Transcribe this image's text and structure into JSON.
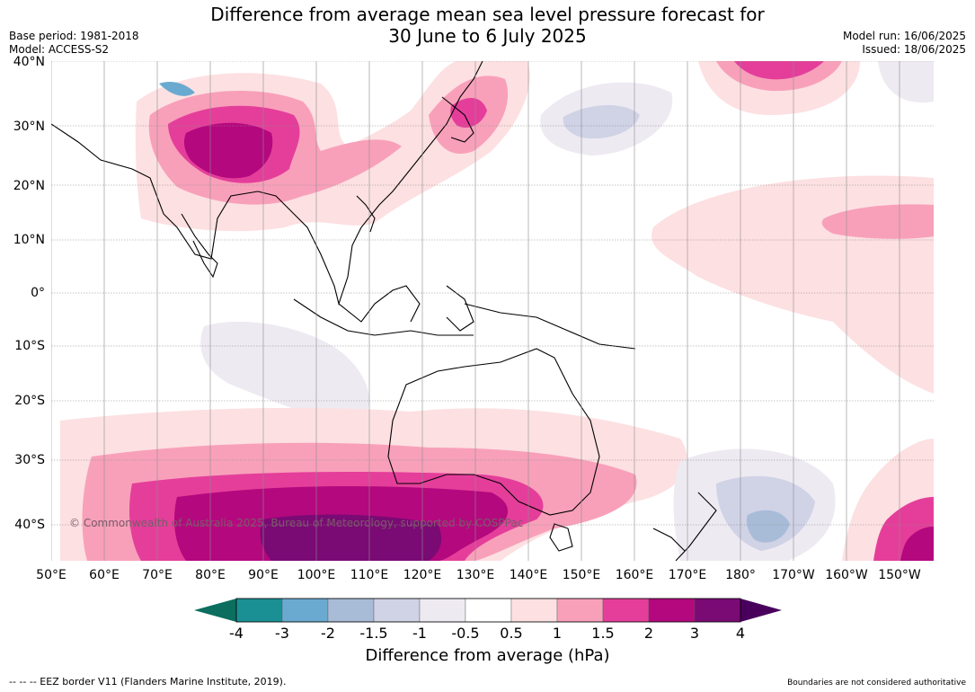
{
  "title_line1": "Difference from average mean sea level pressure forecast for",
  "title_line2": "30 June to 6 July 2025",
  "meta_left": {
    "base_period": "Base period: 1981-2018",
    "model": "Model: ACCESS-S2"
  },
  "meta_right": {
    "model_run": "Model run: 16/06/2025",
    "issued": "Issued: 18/06/2025"
  },
  "lat_labels": [
    "40°N",
    "30°N",
    "20°N",
    "10°N",
    "0°",
    "10°S",
    "20°S",
    "30°S",
    "40°S"
  ],
  "lon_labels": [
    "50°E",
    "60°E",
    "70°E",
    "80°E",
    "90°E",
    "100°E",
    "110°E",
    "120°E",
    "130°E",
    "140°E",
    "150°E",
    "160°E",
    "170°E",
    "180°",
    "170°W",
    "160°W",
    "150°W"
  ],
  "copyright": "© Commonwealth of Australia 2025, Bureau of Meteorology, supported by COSPPac",
  "colorbar": {
    "ticks": [
      "-4",
      "-3",
      "-2",
      "-1.5",
      "-1",
      "-0.5",
      "0.5",
      "1",
      "1.5",
      "2",
      "3",
      "4"
    ],
    "title": "Difference from average (hPa)",
    "colors": {
      "under": "#0b6e5e",
      "bins": [
        "#1a9094",
        "#6aaad0",
        "#a8bcd8",
        "#d0d2e6",
        "#eeeaf2",
        "#ffffff",
        "#fde0e2",
        "#f8a0ba",
        "#e43e9a",
        "#b4087e",
        "#7a0a74"
      ],
      "over": "#48005c"
    }
  },
  "footer_left": "--  --  -- EEZ border V11 (Flanders Marine Institute, 2019).",
  "footer_right": "Boundaries are not considered authoritative"
}
